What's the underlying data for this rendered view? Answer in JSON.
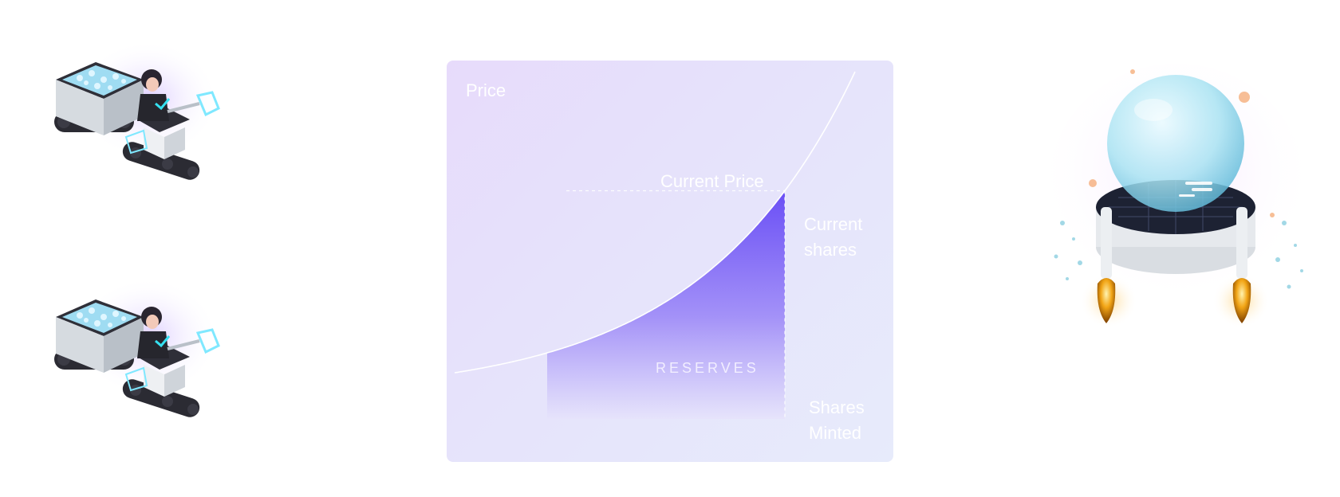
{
  "chart_data": {
    "type": "area",
    "ylabel": "Price",
    "xlabel": "Shares Minted",
    "annotations": {
      "current_price": "Current Price",
      "current_shares": "Current shares",
      "reserves": "RESERVES"
    },
    "curve": "exponential",
    "area_range": "from lower shares bound up to current shares",
    "colors": {
      "card_bg_start": "#e7dbfb",
      "card_bg_end": "#e7ebfb",
      "curve": "#ffffff",
      "reserves_fill_top": "#6a4ff5",
      "reserves_fill_bottom": "#e6e3fb"
    }
  },
  "illustrations": {
    "robot_top": "robot-cart-icon",
    "robot_bottom": "robot-cart-icon",
    "rocket": "glass-dome-rocket-icon"
  }
}
